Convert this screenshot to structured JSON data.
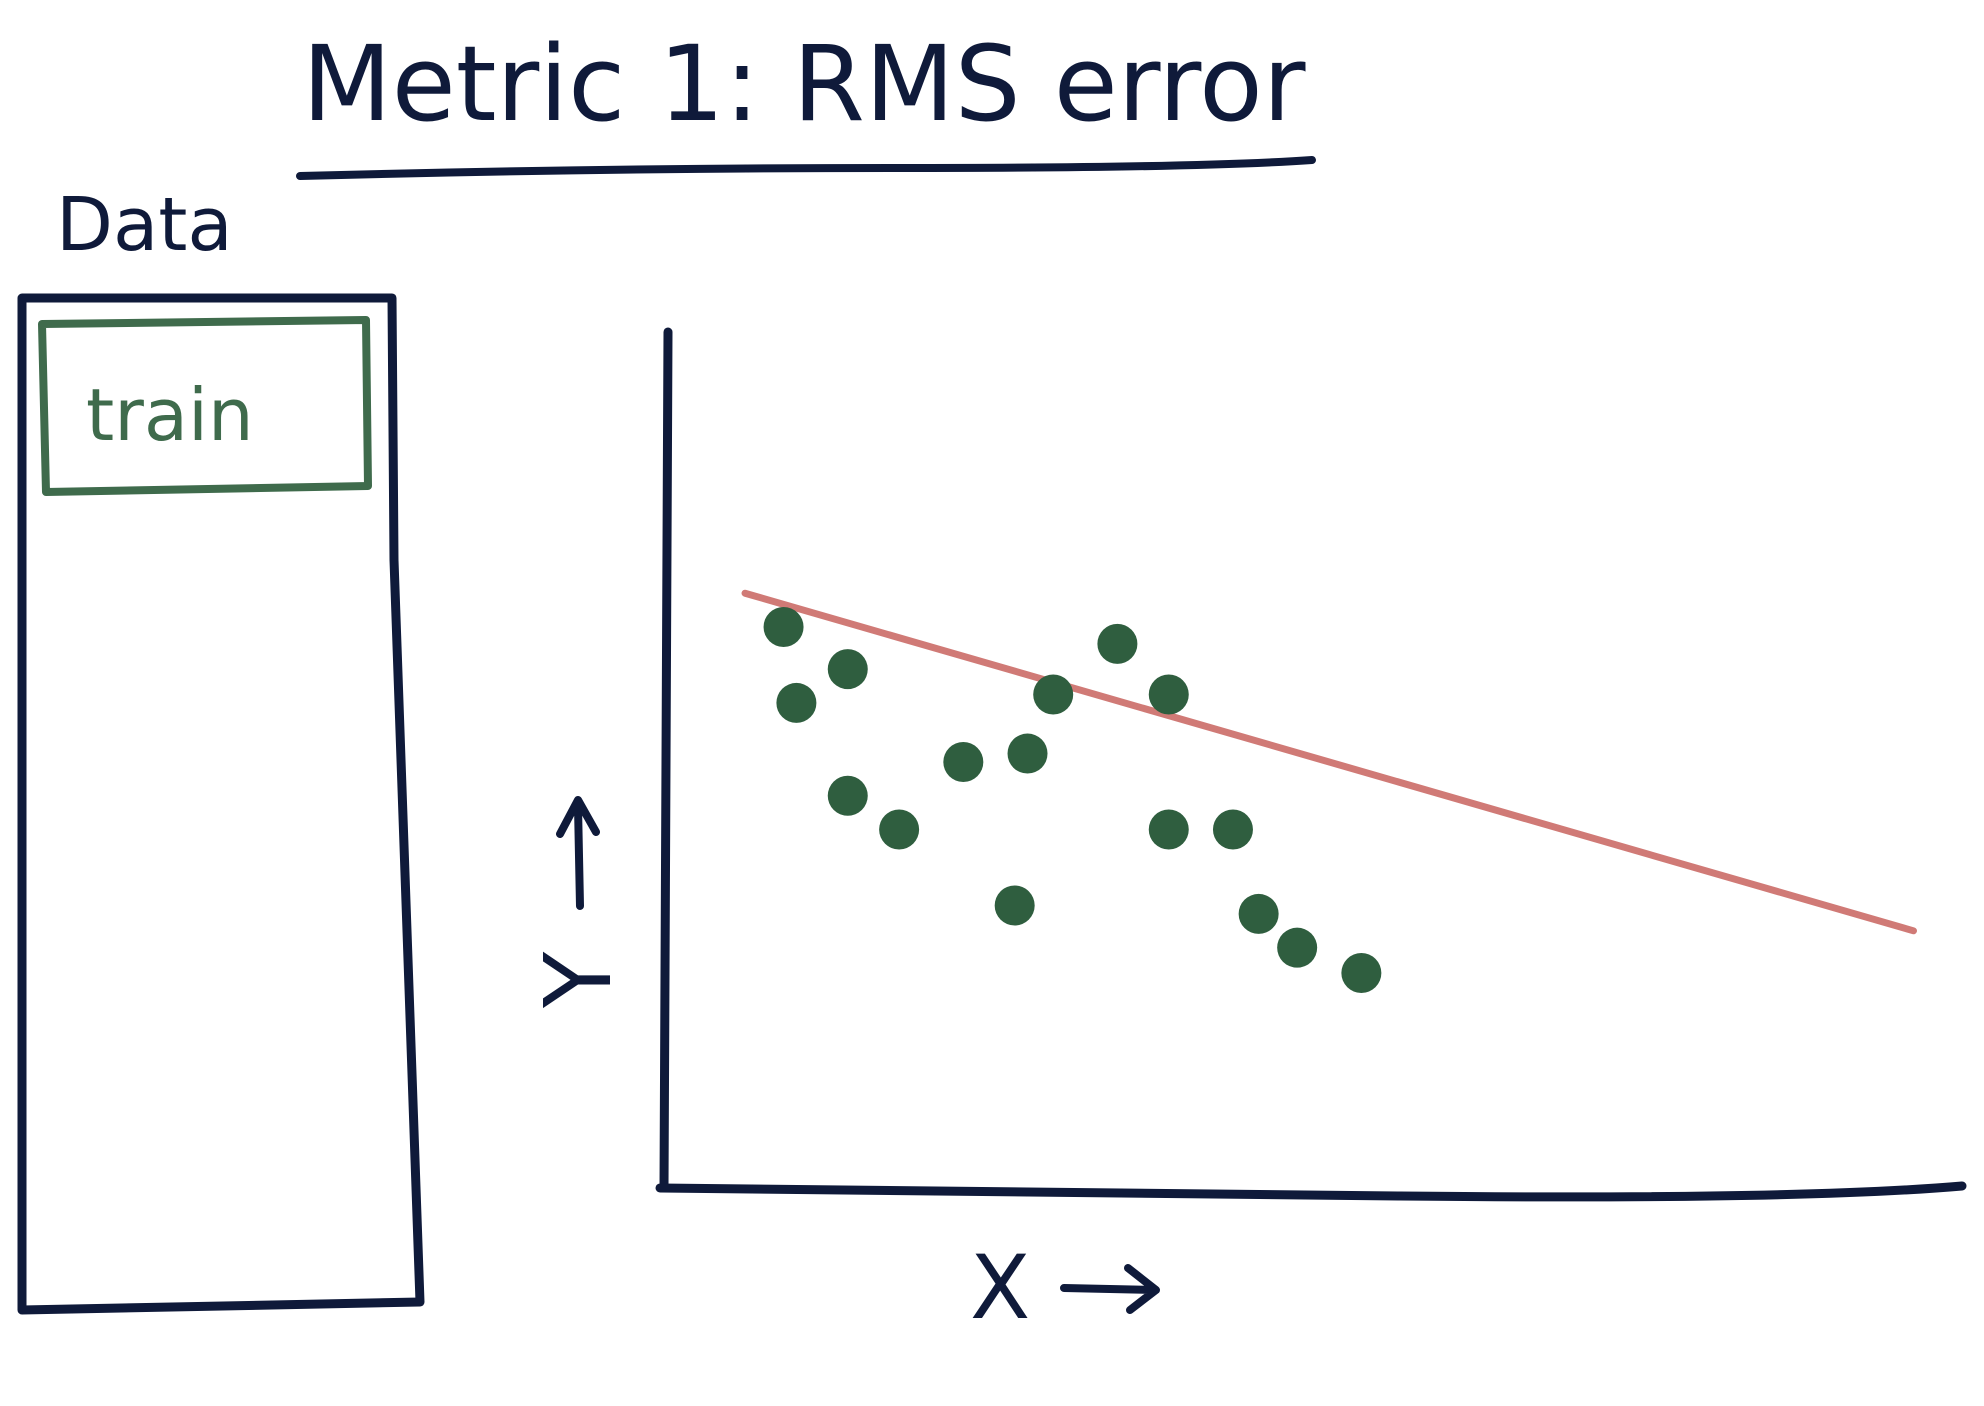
{
  "title": "Metric 1: RMS error",
  "data_box": {
    "label": "Data",
    "train_label": "train"
  },
  "axes": {
    "x_label": "X",
    "y_label": "Y"
  },
  "colors": {
    "ink": "#0f1a3a",
    "train_green": "#3f6b4c",
    "point_green": "#2f5e3f",
    "fit_line": "#d07a76"
  },
  "icons": [
    "x-arrow-icon",
    "y-arrow-icon"
  ],
  "chart_data": {
    "type": "scatter",
    "title": "Metric 1: RMS error",
    "xlabel": "X",
    "ylabel": "Y",
    "grid": false,
    "xlim": [
      0,
      100
    ],
    "ylim": [
      0,
      100
    ],
    "points": [
      {
        "x": 9,
        "y": 66
      },
      {
        "x": 10,
        "y": 57
      },
      {
        "x": 14,
        "y": 61
      },
      {
        "x": 14,
        "y": 46
      },
      {
        "x": 18,
        "y": 42
      },
      {
        "x": 23,
        "y": 50
      },
      {
        "x": 27,
        "y": 33
      },
      {
        "x": 28,
        "y": 51
      },
      {
        "x": 30,
        "y": 58
      },
      {
        "x": 35,
        "y": 64
      },
      {
        "x": 39,
        "y": 58
      },
      {
        "x": 39,
        "y": 42
      },
      {
        "x": 44,
        "y": 42
      },
      {
        "x": 46,
        "y": 32
      },
      {
        "x": 49,
        "y": 28
      },
      {
        "x": 54,
        "y": 25
      }
    ],
    "fit_line": {
      "x": [
        6,
        97
      ],
      "y": [
        70,
        30
      ]
    }
  }
}
